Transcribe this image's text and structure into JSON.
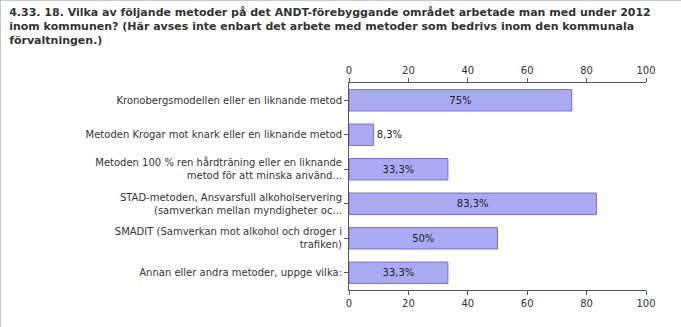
{
  "chart_data": {
    "type": "bar",
    "orientation": "horizontal",
    "title": "4.33. 18. Vilka av följande metoder på det ANDT-förebyggande området arbetade man med under 2012 inom kommunen? (Här avses inte enbart det arbete med metoder som bedrivs inom den kommunala förvaltningen.)",
    "categories": [
      "Kronobergsmodellen eller en liknande metod",
      "Metoden Krogar mot knark eller en liknande metod",
      "Metoden 100 % ren hårdträning eller en liknande metod för att minska använd...",
      "STAD-metoden, Ansvarsfull alkoholservering (samverkan mellan myndigheter oc...",
      "SMADIT (Samverkan mot alkohol och droger i trafiken)",
      "Annan eller andra metoder, uppge vilka:"
    ],
    "values": [
      75,
      8.3,
      33.3,
      83.3,
      50,
      33.3
    ],
    "value_labels": [
      "75%",
      "8,3%",
      "33,3%",
      "83,3%",
      "50%",
      "33,3%"
    ],
    "data_labels": true,
    "color": "#aaaaf2",
    "xlim": [
      0,
      100
    ],
    "xticks": [
      0,
      20,
      40,
      60,
      80,
      100
    ],
    "grid": false
  }
}
